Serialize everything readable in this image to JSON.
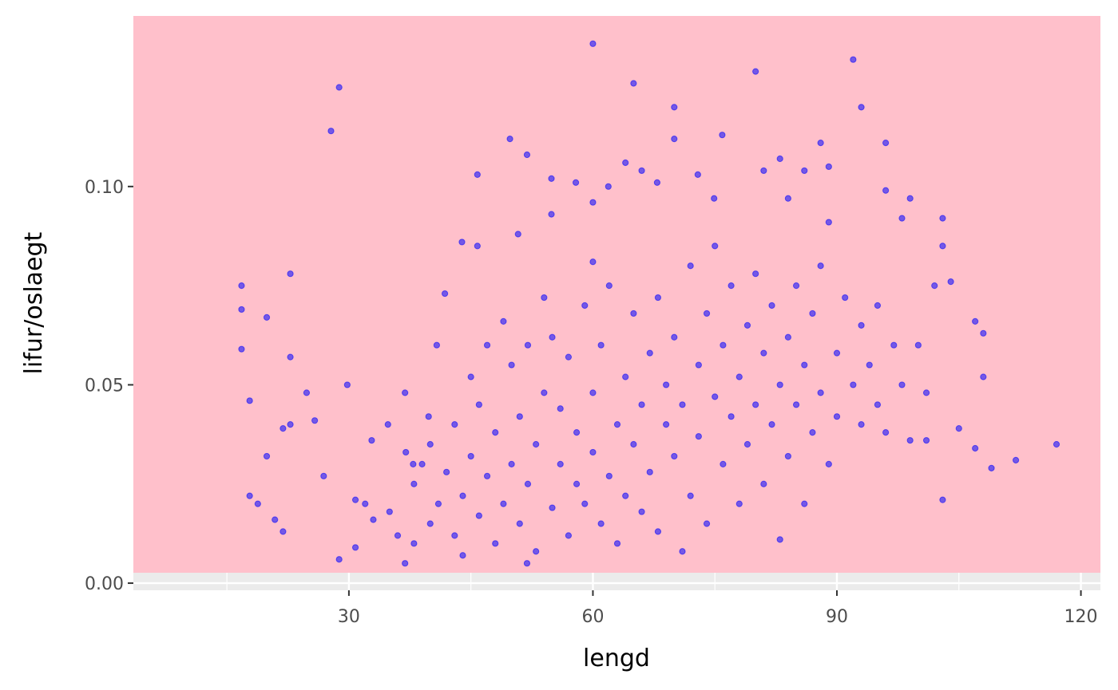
{
  "chart_data": {
    "type": "scatter",
    "x_label": "lengd",
    "y_label": "lifur/oslaegt",
    "color": "#0000ff",
    "opacity": 0.55,
    "xlim": [
      3.5,
      122.4
    ],
    "ylim": [
      -0.0018,
      0.143
    ],
    "xticks": [
      30,
      60,
      90,
      120
    ],
    "x_minor_ticks": [
      15,
      45,
      75,
      105
    ],
    "yticks": [
      {
        "value": 0,
        "label": "0.00"
      },
      {
        "value": 0.05,
        "label": "0.05"
      },
      {
        "value": 0.1,
        "label": "0.10"
      }
    ],
    "grid": true,
    "x": [
      16.8,
      16.8,
      16.8,
      17.8,
      19.9,
      17.8,
      18.8,
      19.9,
      20.9,
      21.9,
      21.9,
      22.8,
      22.8,
      22.8,
      24.8,
      25.8,
      26.9,
      28.8,
      27.8,
      29.8,
      28.8,
      30.8,
      30.8,
      32.8,
      34.8,
      36.9,
      36.9,
      37.9,
      39.8,
      40.8,
      41.8,
      43.9,
      45.8,
      45.8,
      49.8,
      51.9,
      50.8,
      54.9,
      54.9,
      51.9,
      57.9,
      60,
      60,
      60,
      61.9,
      64,
      65,
      66,
      67.9,
      70,
      70,
      72.9,
      75.9,
      74.9,
      80,
      81,
      83,
      84,
      86,
      88,
      89,
      92,
      93,
      96,
      96,
      99,
      98,
      103,
      103,
      104,
      107,
      108,
      108,
      107,
      109,
      112,
      117,
      103,
      101,
      105,
      89,
      38,
      38,
      39,
      40,
      40,
      41,
      42,
      43,
      43,
      44,
      44,
      45,
      45,
      46,
      46,
      47,
      47,
      48,
      48,
      49,
      49,
      50,
      50,
      51,
      51,
      52,
      52,
      53,
      53,
      54,
      54,
      55,
      55,
      56,
      56,
      57,
      57,
      58,
      58,
      59,
      59,
      60,
      60,
      61,
      61,
      62,
      62,
      63,
      63,
      64,
      64,
      65,
      65,
      66,
      66,
      67,
      67,
      68,
      68,
      69,
      69,
      70,
      70,
      71,
      71,
      72,
      72,
      73,
      73,
      74,
      74,
      75,
      75,
      76,
      76,
      77,
      77,
      78,
      78,
      79,
      79,
      80,
      80,
      81,
      81,
      82,
      82,
      83,
      83,
      84,
      84,
      85,
      85,
      86,
      86,
      87,
      87,
      88,
      88,
      89,
      90,
      90,
      91,
      92,
      93,
      93,
      94,
      95,
      95,
      96,
      97,
      98,
      99,
      100,
      101,
      102,
      35,
      36,
      33,
      32,
      37
    ],
    "y": [
      0.075,
      0.069,
      0.059,
      0.046,
      0.067,
      0.022,
      0.02,
      0.032,
      0.016,
      0.039,
      0.013,
      0.078,
      0.057,
      0.04,
      0.048,
      0.041,
      0.027,
      0.125,
      0.114,
      0.05,
      0.006,
      0.021,
      0.009,
      0.036,
      0.04,
      0.048,
      0.005,
      0.03,
      0.042,
      0.06,
      0.073,
      0.086,
      0.103,
      0.085,
      0.112,
      0.108,
      0.088,
      0.102,
      0.093,
      0.005,
      0.101,
      0.136,
      0.096,
      0.081,
      0.1,
      0.106,
      0.126,
      0.104,
      0.101,
      0.12,
      0.112,
      0.103,
      0.113,
      0.097,
      0.129,
      0.104,
      0.107,
      0.097,
      0.104,
      0.111,
      0.105,
      0.132,
      0.12,
      0.111,
      0.099,
      0.097,
      0.092,
      0.092,
      0.085,
      0.076,
      0.066,
      0.063,
      0.052,
      0.034,
      0.029,
      0.031,
      0.035,
      0.021,
      0.036,
      0.039,
      0.091,
      0.01,
      0.025,
      0.03,
      0.015,
      0.035,
      0.02,
      0.028,
      0.04,
      0.012,
      0.022,
      0.007,
      0.032,
      0.052,
      0.017,
      0.045,
      0.06,
      0.027,
      0.01,
      0.038,
      0.066,
      0.02,
      0.03,
      0.055,
      0.015,
      0.042,
      0.025,
      0.06,
      0.008,
      0.035,
      0.048,
      0.072,
      0.019,
      0.062,
      0.03,
      0.044,
      0.012,
      0.057,
      0.025,
      0.038,
      0.07,
      0.02,
      0.048,
      0.033,
      0.015,
      0.06,
      0.027,
      0.075,
      0.04,
      0.01,
      0.052,
      0.022,
      0.035,
      0.068,
      0.018,
      0.045,
      0.058,
      0.028,
      0.072,
      0.013,
      0.04,
      0.05,
      0.032,
      0.062,
      0.008,
      0.045,
      0.08,
      0.022,
      0.055,
      0.037,
      0.068,
      0.015,
      0.047,
      0.085,
      0.03,
      0.06,
      0.042,
      0.075,
      0.02,
      0.052,
      0.065,
      0.035,
      0.078,
      0.045,
      0.058,
      0.025,
      0.07,
      0.04,
      0.05,
      0.011,
      0.062,
      0.032,
      0.075,
      0.045,
      0.055,
      0.02,
      0.068,
      0.038,
      0.048,
      0.08,
      0.03,
      0.058,
      0.042,
      0.072,
      0.05,
      0.065,
      0.04,
      0.055,
      0.045,
      0.07,
      0.038,
      0.06,
      0.05,
      0.036,
      0.06,
      0.048,
      0.075,
      0.018,
      0.012,
      0.016,
      0.02,
      0.033
    ]
  }
}
